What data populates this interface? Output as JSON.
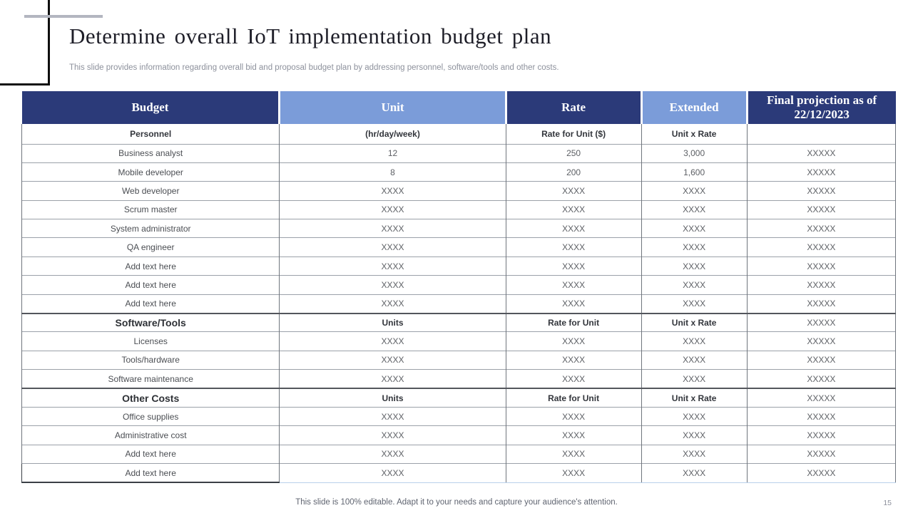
{
  "slide": {
    "title": "Determine overall IoT implementation budget plan",
    "subtitle": "This slide provides information regarding overall bid and proposal budget plan by addressing personnel, software/tools and other costs.",
    "footer": "This slide is 100% editable. Adapt it to your needs and capture your audience's attention.",
    "page_number": "15"
  },
  "colors": {
    "header_dark_blue": "#2b3a79",
    "header_light_blue": "#7b9cd9",
    "header_text": "#ffffff",
    "body_text": "#5d6065",
    "accent_line_gray": "#b3b6c0",
    "decor_line_black": "#0e0e0e"
  },
  "table": {
    "columns": [
      {
        "label": "Budget",
        "tone": "dark",
        "width": 29.5
      },
      {
        "label": "Unit",
        "tone": "light",
        "width": 25.9
      },
      {
        "label": "Rate",
        "tone": "dark",
        "width": 15.5
      },
      {
        "label": "Extended",
        "tone": "light",
        "width": 12.1
      },
      {
        "label": "Final projection as of 22/12/2023",
        "tone": "dark",
        "width": 17.0
      }
    ],
    "rows": [
      {
        "type": "subheader",
        "cells": [
          "Personnel",
          "(hr/day/week)",
          "Rate for Unit ($)",
          "Unit x Rate",
          ""
        ]
      },
      {
        "type": "data",
        "cells": [
          "Business analyst",
          "12",
          "250",
          "3,000",
          "XXXXX"
        ]
      },
      {
        "type": "data",
        "cells": [
          "Mobile developer",
          "8",
          "200",
          "1,600",
          "XXXXX"
        ]
      },
      {
        "type": "data",
        "cells": [
          "Web developer",
          "XXXX",
          "XXXX",
          "XXXX",
          "XXXXX"
        ]
      },
      {
        "type": "data",
        "cells": [
          "Scrum master",
          "XXXX",
          "XXXX",
          "XXXX",
          "XXXXX"
        ]
      },
      {
        "type": "data",
        "cells": [
          "System administrator",
          "XXXX",
          "XXXX",
          "XXXX",
          "XXXXX"
        ]
      },
      {
        "type": "data",
        "cells": [
          "QA engineer",
          "XXXX",
          "XXXX",
          "XXXX",
          "XXXXX"
        ]
      },
      {
        "type": "data",
        "cells": [
          "Add text here",
          "XXXX",
          "XXXX",
          "XXXX",
          "XXXXX"
        ]
      },
      {
        "type": "data",
        "cells": [
          "Add text here",
          "XXXX",
          "XXXX",
          "XXXX",
          "XXXXX"
        ]
      },
      {
        "type": "data",
        "cells": [
          "Add text here",
          "XXXX",
          "XXXX",
          "XXXX",
          "XXXXX"
        ]
      },
      {
        "type": "section",
        "cells": [
          "Software/Tools",
          "Units",
          "Rate for Unit",
          "Unit x Rate",
          "XXXXX"
        ]
      },
      {
        "type": "data",
        "cells": [
          "Licenses",
          "XXXX",
          "XXXX",
          "XXXX",
          "XXXXX"
        ]
      },
      {
        "type": "data",
        "cells": [
          "Tools/hardware",
          "XXXX",
          "XXXX",
          "XXXX",
          "XXXXX"
        ]
      },
      {
        "type": "data",
        "cells": [
          "Software maintenance",
          "XXXX",
          "XXXX",
          "XXXX",
          "XXXXX"
        ]
      },
      {
        "type": "section",
        "cells": [
          "Other Costs",
          "Units",
          "Rate for Unit",
          "Unit x Rate",
          "XXXXX"
        ]
      },
      {
        "type": "data",
        "cells": [
          "Office supplies",
          "XXXX",
          "XXXX",
          "XXXX",
          "XXXXX"
        ]
      },
      {
        "type": "data",
        "cells": [
          "Administrative cost",
          "XXXX",
          "XXXX",
          "XXXX",
          "XXXXX"
        ]
      },
      {
        "type": "data",
        "cells": [
          "Add text here",
          "XXXX",
          "XXXX",
          "XXXX",
          "XXXXX"
        ]
      },
      {
        "type": "data",
        "cells": [
          "Add text here",
          "XXXX",
          "XXXX",
          "XXXX",
          "XXXXX"
        ]
      }
    ]
  }
}
